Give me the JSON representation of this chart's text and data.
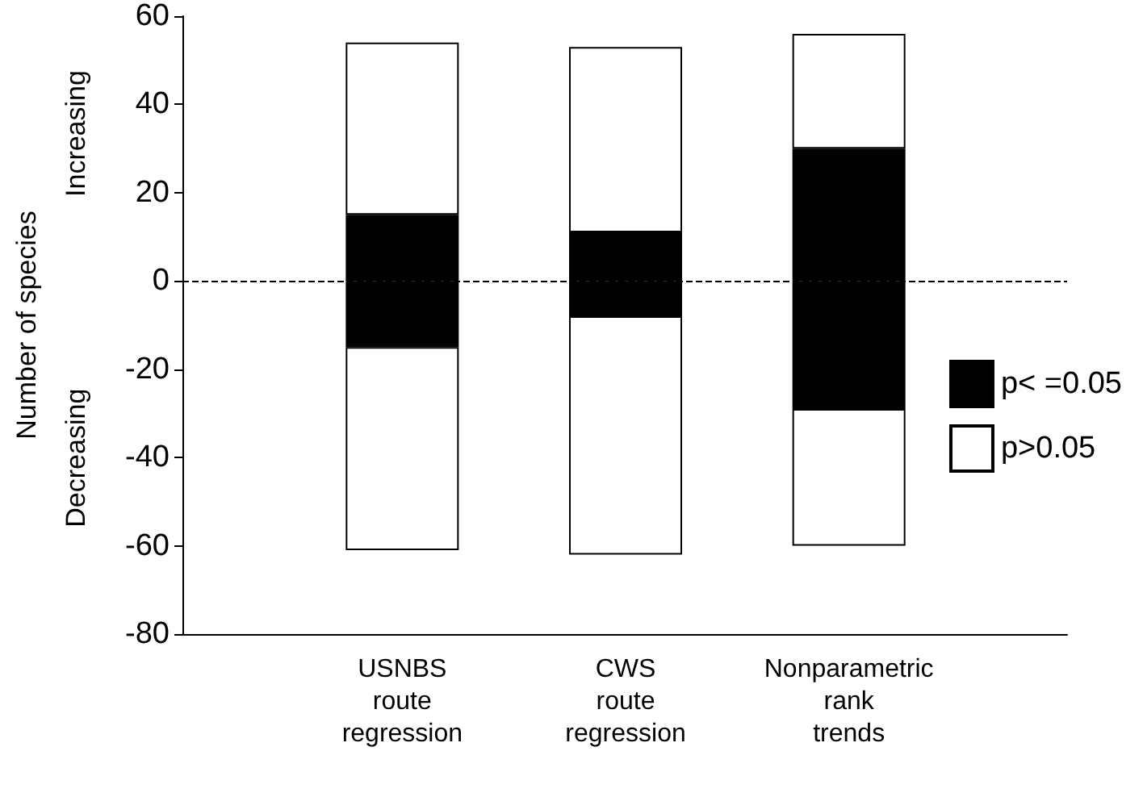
{
  "chart_data": {
    "type": "bar",
    "ylabel": "Number of species",
    "annotations": [
      "Increasing",
      "Decreasing"
    ],
    "categories": [
      "USNBS\nroute\nregression",
      "CWS\nroute\nregression",
      "Nonparametric\nrank\ntrends"
    ],
    "stacked": true,
    "series": [
      {
        "name": "p< =0.05",
        "color": "#000000",
        "values": [
          15,
          11,
          30
        ]
      },
      {
        "name": "p>0.05",
        "color": "#ffffff",
        "values": [
          39,
          42,
          26
        ]
      },
      {
        "color": "#000000",
        "values": [
          -15,
          -8,
          -29
        ]
      },
      {
        "color": "#ffffff",
        "values": [
          -46,
          -54,
          -31
        ]
      }
    ],
    "ylim": [
      -80,
      60
    ],
    "yticks": [
      -80,
      -60,
      -40,
      -20,
      0,
      20,
      40,
      60
    ],
    "ref_lines": [
      {
        "axis": "y",
        "value": 0,
        "line_style": "dashed"
      }
    ],
    "grid": false,
    "legend": "right"
  }
}
